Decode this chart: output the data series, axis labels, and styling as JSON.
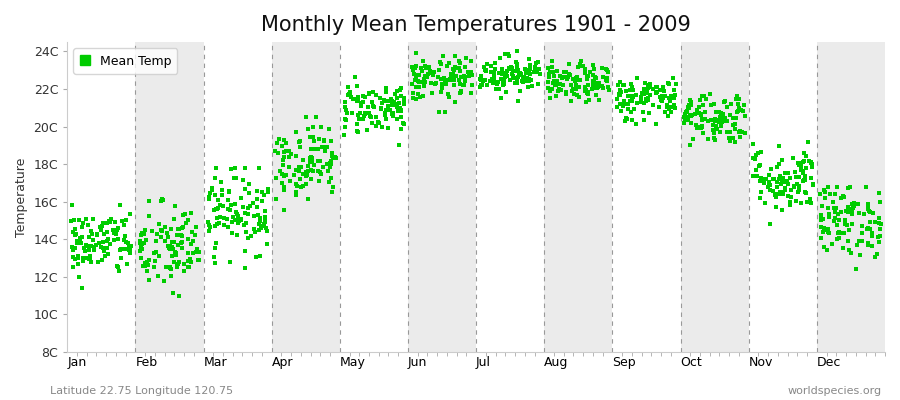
{
  "title": "Monthly Mean Temperatures 1901 - 2009",
  "ylabel": "Temperature",
  "lat_lon_label": "Latitude 22.75 Longitude 120.75",
  "attribution": "worldspecies.org",
  "legend_label": "Mean Temp",
  "marker_color": "#00cc00",
  "bg_color": "#ffffff",
  "band_color": "#ebebeb",
  "ylim": [
    8,
    24.5
  ],
  "yticks": [
    8,
    10,
    12,
    14,
    16,
    18,
    20,
    22,
    24
  ],
  "ytick_labels": [
    "8C",
    "10C",
    "12C",
    "14C",
    "16C",
    "18C",
    "20C",
    "22C",
    "24C"
  ],
  "months": [
    "Jan",
    "Feb",
    "Mar",
    "Apr",
    "May",
    "Jun",
    "Jul",
    "Aug",
    "Sep",
    "Oct",
    "Nov",
    "Dec"
  ],
  "num_years": 109,
  "seed": 42,
  "monthly_means": [
    13.8,
    13.5,
    15.5,
    18.2,
    21.0,
    22.5,
    22.8,
    22.3,
    21.5,
    20.5,
    17.2,
    15.0
  ],
  "monthly_stds": [
    0.9,
    1.2,
    1.1,
    1.0,
    0.7,
    0.6,
    0.5,
    0.5,
    0.6,
    0.7,
    0.9,
    1.0
  ],
  "monthly_mins": [
    10.5,
    9.2,
    12.0,
    15.5,
    19.0,
    20.5,
    21.2,
    20.8,
    19.5,
    18.5,
    14.8,
    12.0
  ],
  "monthly_maxs": [
    15.8,
    16.5,
    17.8,
    20.5,
    23.2,
    24.0,
    24.3,
    23.5,
    22.8,
    22.5,
    19.5,
    16.8
  ],
  "title_fontsize": 15,
  "label_fontsize": 9,
  "tick_fontsize": 9,
  "marker_size": 2.5
}
